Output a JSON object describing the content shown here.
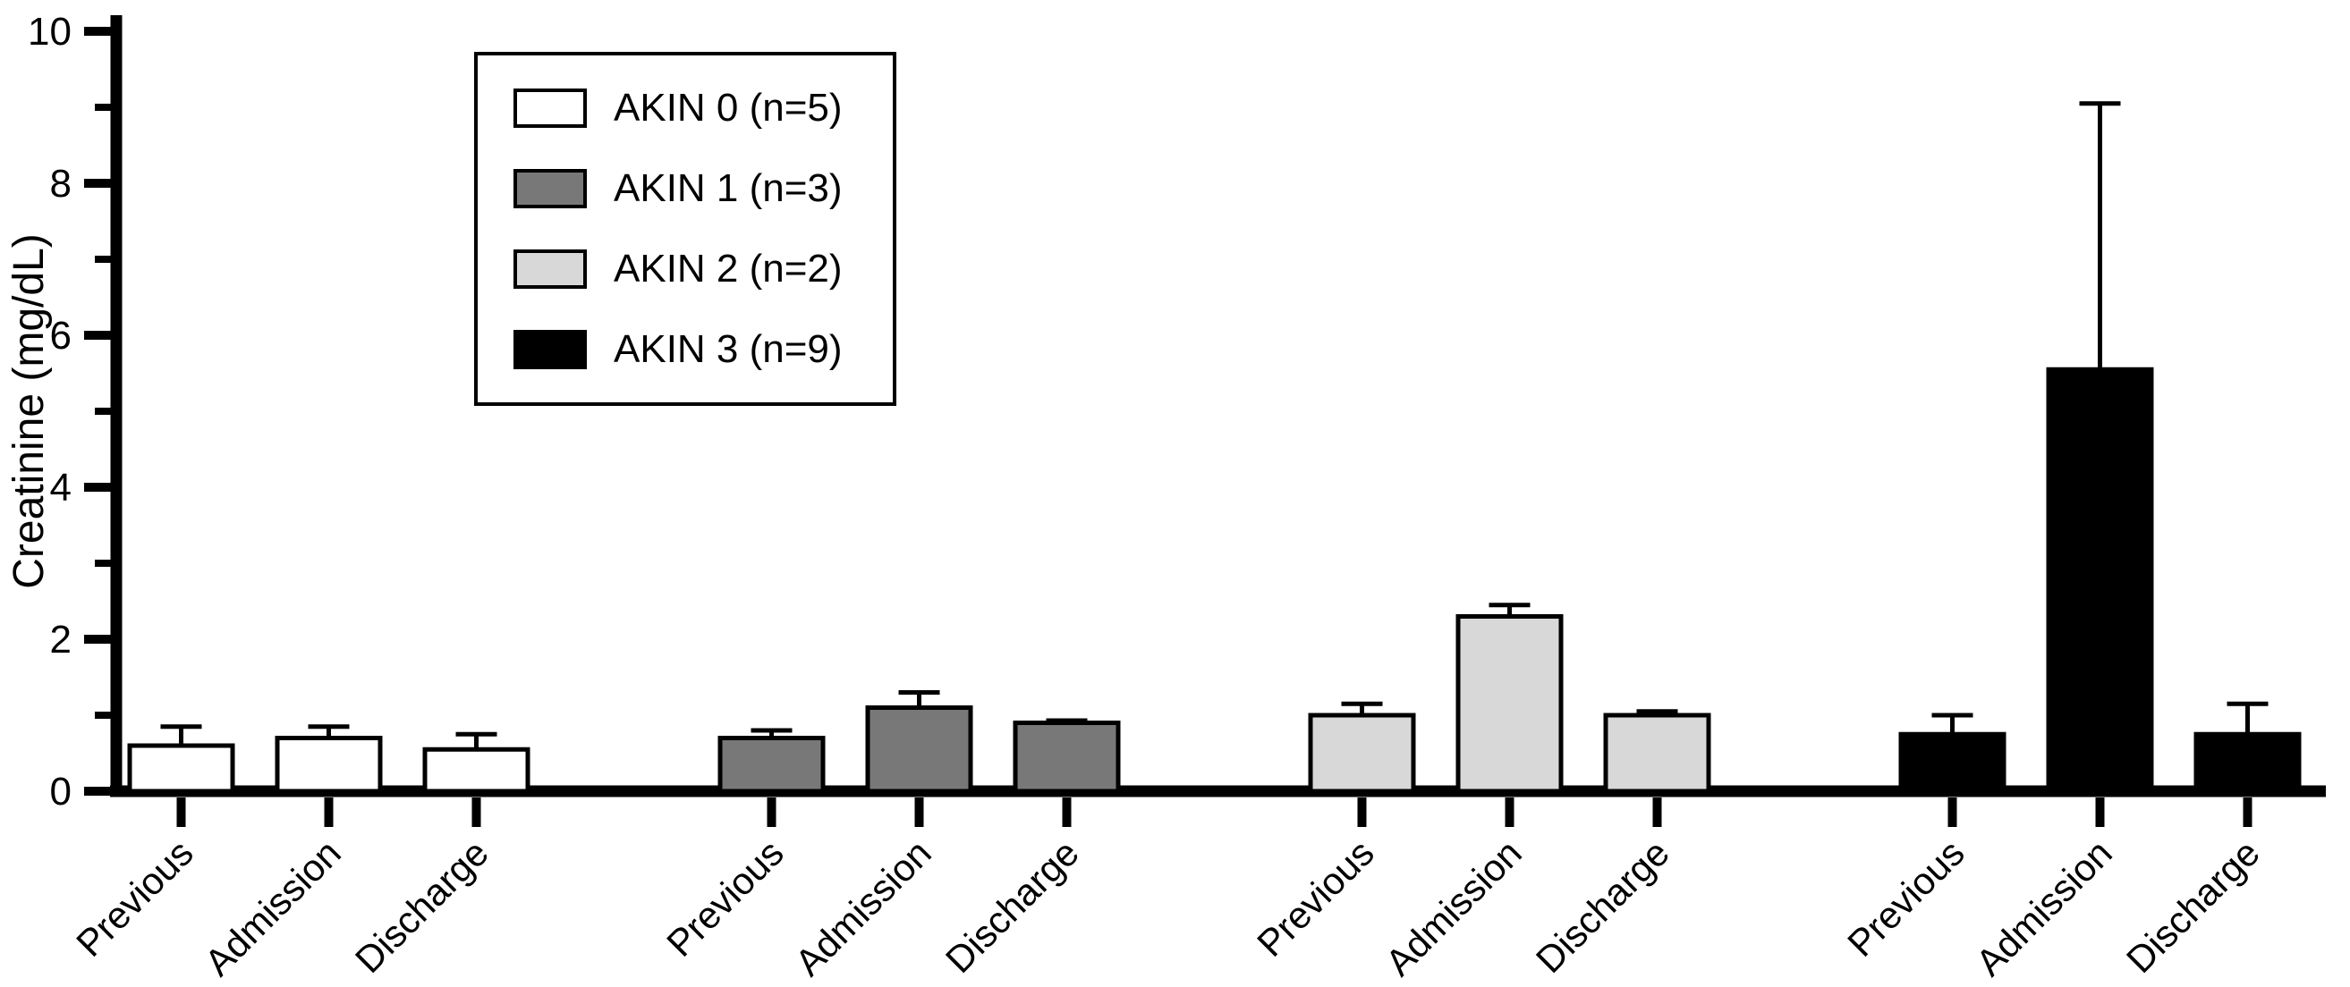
{
  "chart_data": {
    "type": "bar",
    "title": "",
    "xlabel": "",
    "ylabel": "Creatinine (mg/dL)",
    "ylim": [
      0,
      10
    ],
    "yticks_major": [
      0,
      2,
      4,
      6,
      8,
      10
    ],
    "yticks_minor": [
      1,
      3,
      5,
      7,
      9
    ],
    "grid": false,
    "legend_position": "top-left",
    "categories": [
      "Previous",
      "Admission",
      "Discharge"
    ],
    "series": [
      {
        "name": "AKIN 0 (n=5)",
        "color": "#ffffff",
        "values": [
          0.6,
          0.7,
          0.55
        ],
        "errors_upper": [
          0.25,
          0.15,
          0.2
        ]
      },
      {
        "name": "AKIN 1 (n=3)",
        "color": "#787878",
        "values": [
          0.7,
          1.1,
          0.9
        ],
        "errors_upper": [
          0.1,
          0.2,
          0.03
        ]
      },
      {
        "name": "AKIN 2 (n=2)",
        "color": "#d8d8d8",
        "values": [
          1.0,
          2.3,
          1.0
        ],
        "errors_upper": [
          0.15,
          0.15,
          0.05
        ]
      },
      {
        "name": "AKIN 3 (n=9)",
        "color": "#000000",
        "values": [
          0.75,
          5.55,
          0.75
        ],
        "errors_upper": [
          0.25,
          3.5,
          0.4
        ]
      }
    ]
  }
}
